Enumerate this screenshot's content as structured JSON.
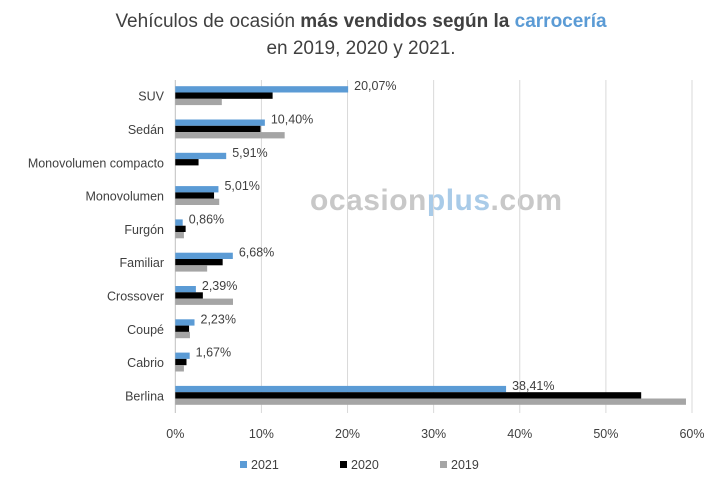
{
  "chart_data": {
    "type": "bar",
    "orientation": "horizontal",
    "title": {
      "part1": "Vehículos de ocasión ",
      "part2": "más vendidos según la ",
      "part3": "carrocería",
      "line2": "en 2019, 2020 y 2021."
    },
    "watermark": {
      "a": "ocasion",
      "b": "plus",
      "c": ".com"
    },
    "categories": [
      "SUV",
      "Sedán",
      "Monovolumen compacto",
      "Monovolumen",
      "Furgón",
      "Familiar",
      "Crossover",
      "Coupé",
      "Cabrio",
      "Berlina"
    ],
    "series": [
      {
        "name": "2021",
        "color": "#5b9bd5",
        "values": [
          20.07,
          10.4,
          5.91,
          5.01,
          0.86,
          6.68,
          2.39,
          2.23,
          1.67,
          38.41
        ],
        "labels": [
          "20,07%",
          "10,40%",
          "5,91%",
          "5,01%",
          "0,86%",
          "6,68%",
          "2,39%",
          "2,23%",
          "1,67%",
          "38,41%"
        ]
      },
      {
        "name": "2020",
        "color": "#000000",
        "values": [
          11.3,
          9.9,
          2.7,
          4.5,
          1.2,
          5.5,
          3.2,
          1.6,
          1.3,
          54.1
        ]
      },
      {
        "name": "2019",
        "color": "#a5a5a5",
        "values": [
          5.4,
          12.7,
          0,
          5.1,
          1.0,
          3.7,
          6.7,
          1.7,
          1.0,
          59.3
        ]
      }
    ],
    "xlim": [
      0,
      60
    ],
    "xticks": [
      "0%",
      "10%",
      "20%",
      "30%",
      "40%",
      "50%",
      "60%"
    ],
    "grid": true,
    "legend": "bottom"
  }
}
